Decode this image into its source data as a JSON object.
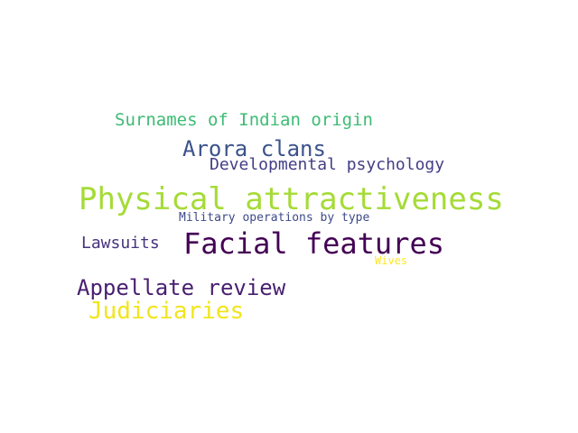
{
  "words": [
    {
      "id": "surnames",
      "text": "Surnames of Indian origin",
      "color": "#3dbc74"
    },
    {
      "id": "arora",
      "text": "Arora clans",
      "color": "#3b528b"
    },
    {
      "id": "devpsy",
      "text": "Developmental psychology",
      "color": "#433e85"
    },
    {
      "id": "phys",
      "text": "Physical attractiveness",
      "color": "#a5db36"
    },
    {
      "id": "military",
      "text": "Military operations by type",
      "color": "#3e4a89"
    },
    {
      "id": "lawsuits",
      "text": "Lawsuits",
      "color": "#46337e"
    },
    {
      "id": "facial",
      "text": "Facial features",
      "color": "#440154"
    },
    {
      "id": "wives",
      "text": "Wives",
      "color": "#fde725"
    },
    {
      "id": "appellate",
      "text": "Appellate review",
      "color": "#481f70"
    },
    {
      "id": "judic",
      "text": "Judiciaries",
      "color": "#f1e51d"
    }
  ]
}
